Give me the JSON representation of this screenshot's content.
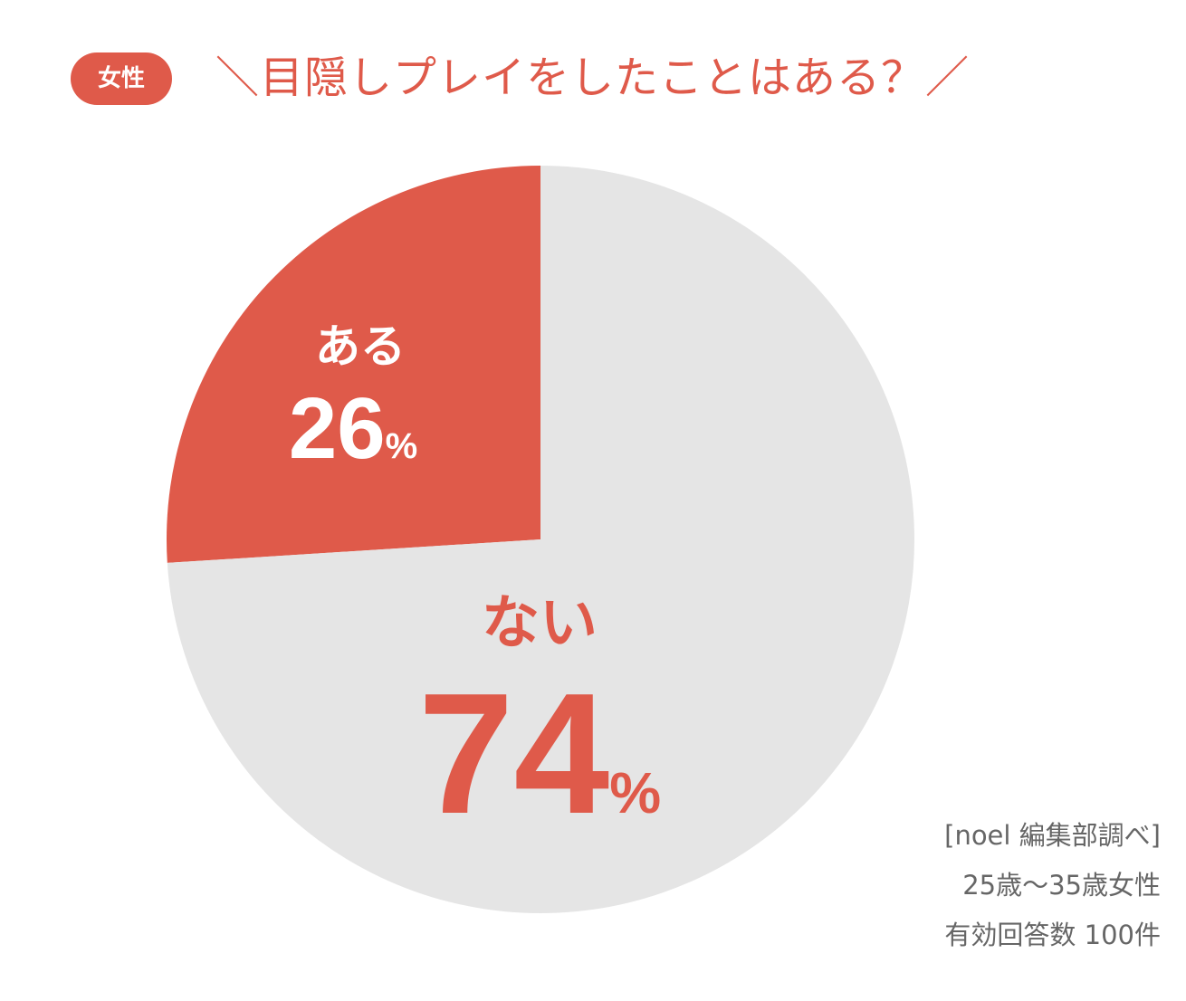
{
  "badge": "女性",
  "title": "＼目隠しプレイをしたことはある？／",
  "chart_data": {
    "type": "pie",
    "title": "＼目隠しプレイをしたことはある？／",
    "categories": [
      "ある",
      "ない"
    ],
    "values": [
      26,
      74
    ],
    "value_suffix": "%",
    "colors": [
      "#df5a4a",
      "#e5e5e5"
    ],
    "label_colors": [
      "#ffffff",
      "#df5a4a"
    ]
  },
  "source": {
    "line1": "[noel 編集部調べ]",
    "line2": "25歳〜35歳女性",
    "line3": "有効回答数 100件"
  }
}
